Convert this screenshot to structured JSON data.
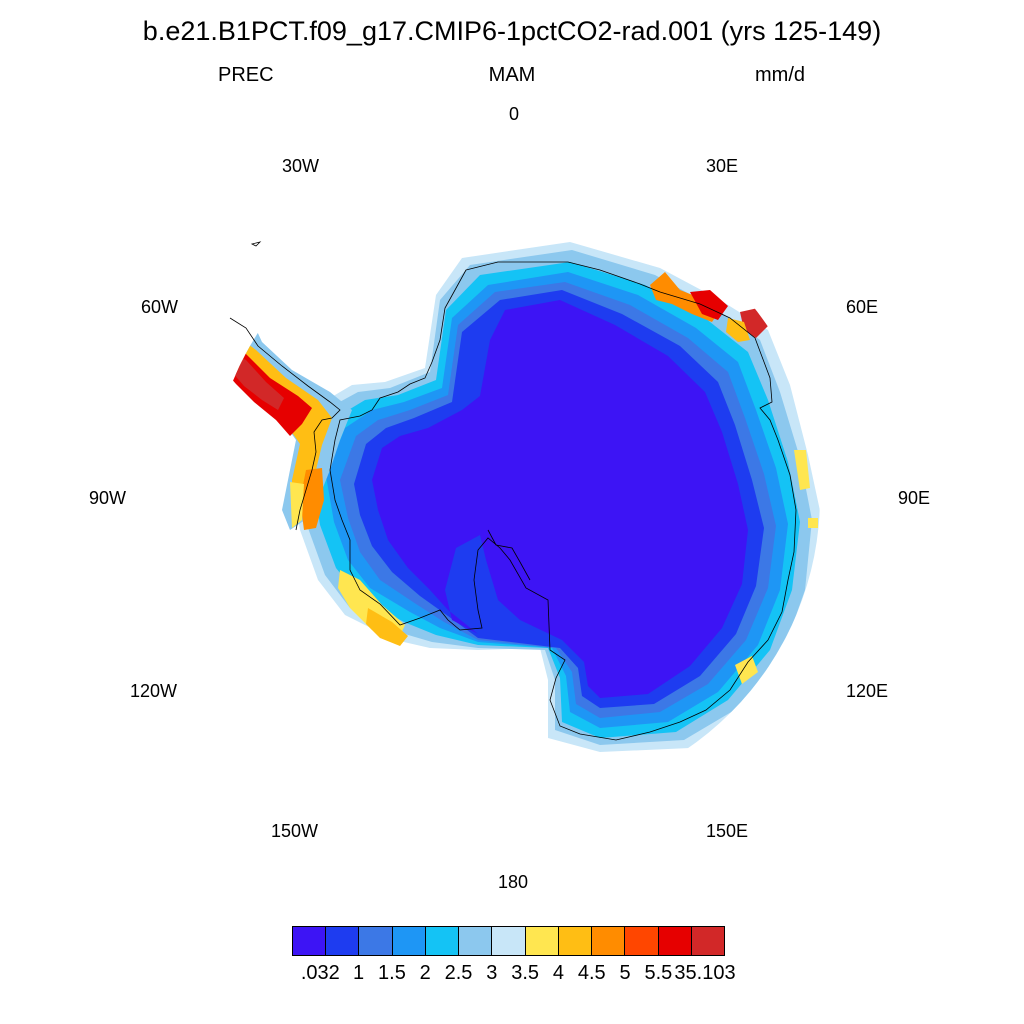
{
  "title": "b.e21.B1PCT.f09_g17.CMIP6-1pctCO2-rad.001 (yrs 125-149)",
  "subtitle_left": "PREC",
  "subtitle_center": "MAM",
  "subtitle_right": "mm/d",
  "longitude_labels": {
    "lon_0": "0",
    "lon_30e": "30E",
    "lon_60e": "60E",
    "lon_90e": "90E",
    "lon_120e": "120E",
    "lon_150e": "150E",
    "lon_180": "180",
    "lon_150w": "150W",
    "lon_120w": "120W",
    "lon_90w": "90W",
    "lon_60w": "60W",
    "lon_30w": "30W"
  },
  "colorbar": {
    "colors": [
      "#3d14f5",
      "#1e3cf0",
      "#3c78e6",
      "#1e96f5",
      "#14c3f5",
      "#8cc8ee",
      "#c8e6f8",
      "#ffe650",
      "#ffbe14",
      "#ff8c00",
      "#ff4600",
      "#e60000",
      "#d22828"
    ],
    "labels": [
      ".032",
      "1",
      "1.5",
      "2",
      "2.5",
      "3",
      "3.5",
      "4",
      "4.5",
      "5",
      "5.5",
      "35.103"
    ]
  }
}
